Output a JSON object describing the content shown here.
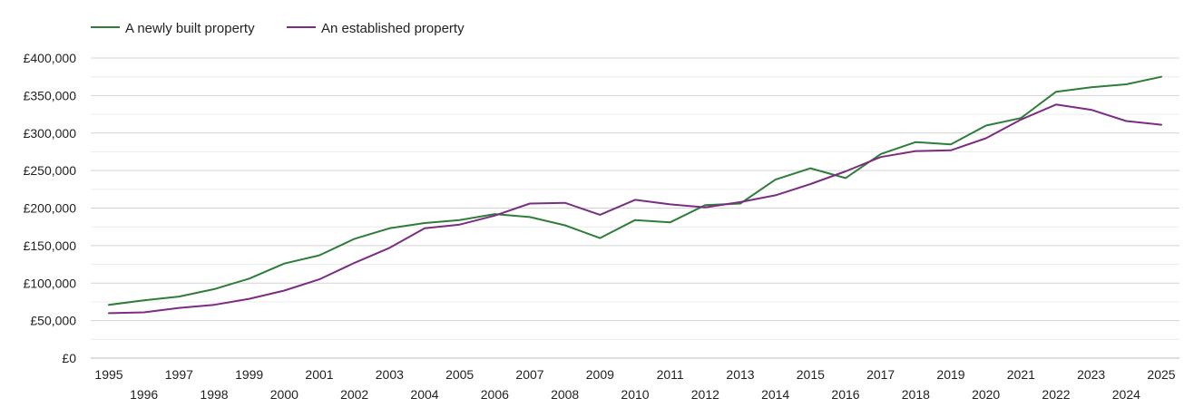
{
  "chart_data": {
    "type": "line",
    "title": "",
    "xlabel": "",
    "ylabel": "",
    "ylim": [
      0,
      400000
    ],
    "yticks": [
      0,
      50000,
      100000,
      150000,
      200000,
      250000,
      300000,
      350000,
      400000
    ],
    "ytick_labels": [
      "£0",
      "£50,000",
      "£100,000",
      "£150,000",
      "£200,000",
      "£250,000",
      "£300,000",
      "£350,000",
      "£400,000"
    ],
    "x": [
      "1995",
      "1996",
      "1997",
      "1998",
      "1999",
      "2000",
      "2001",
      "2002",
      "2003",
      "2004",
      "2005",
      "2006",
      "2007",
      "2008",
      "2009",
      "2010",
      "2011",
      "2012",
      "2013",
      "2014",
      "2015",
      "2016",
      "2017",
      "2018",
      "2019",
      "2020",
      "2021",
      "2022",
      "2023",
      "2024",
      "2025"
    ],
    "legend_position": "top-left",
    "grid": true,
    "series": [
      {
        "name": "A newly built property",
        "color": "#2e7d3a",
        "values": [
          71000,
          77000,
          82000,
          92000,
          106000,
          126000,
          137000,
          159000,
          173000,
          180000,
          184000,
          192000,
          188000,
          177000,
          160000,
          184000,
          181000,
          204000,
          206000,
          238000,
          253000,
          240000,
          272000,
          288000,
          285000,
          310000,
          320000,
          355000,
          361000,
          365000,
          375000
        ]
      },
      {
        "name": "An established property",
        "color": "#7b2d82",
        "values": [
          60000,
          61000,
          67000,
          71000,
          79000,
          90000,
          105000,
          127000,
          147000,
          173000,
          178000,
          190000,
          206000,
          207000,
          191000,
          211000,
          205000,
          201000,
          208000,
          217000,
          232000,
          249000,
          268000,
          276000,
          277000,
          293000,
          318000,
          338000,
          331000,
          316000,
          311000
        ]
      }
    ]
  }
}
